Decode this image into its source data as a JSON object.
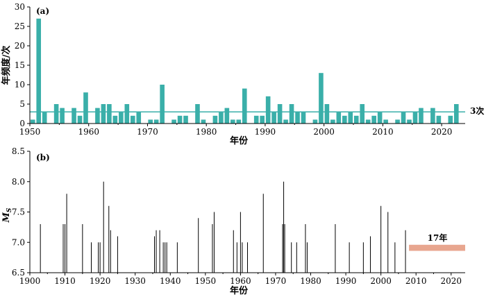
{
  "chart_data": [
    {
      "panel_label": "(a)",
      "type": "bar",
      "xlabel": "年份",
      "ylabel": "年频度/次",
      "xlim": [
        1950,
        2024
      ],
      "ylim": [
        0,
        30
      ],
      "x_ticks": [
        1950,
        1960,
        1970,
        1980,
        1990,
        2000,
        2010,
        2020
      ],
      "y_ticks": [
        0,
        5,
        10,
        15,
        20,
        25,
        30
      ],
      "bar_color": "#3aafa9",
      "x": [
        1950,
        1951,
        1952,
        1953,
        1954,
        1955,
        1956,
        1957,
        1958,
        1959,
        1960,
        1961,
        1962,
        1963,
        1964,
        1965,
        1966,
        1967,
        1968,
        1969,
        1970,
        1971,
        1972,
        1973,
        1974,
        1975,
        1976,
        1977,
        1978,
        1979,
        1980,
        1981,
        1982,
        1983,
        1984,
        1985,
        1986,
        1987,
        1988,
        1989,
        1990,
        1991,
        1992,
        1993,
        1994,
        1995,
        1996,
        1997,
        1998,
        1999,
        2000,
        2001,
        2002,
        2003,
        2004,
        2005,
        2006,
        2007,
        2008,
        2009,
        2010,
        2011,
        2012,
        2013,
        2014,
        2015,
        2016,
        2017,
        2018,
        2019,
        2020,
        2021,
        2022
      ],
      "values": [
        1,
        27,
        3,
        0,
        5,
        4,
        0,
        4,
        2,
        8,
        0,
        4,
        5,
        5,
        2,
        3,
        5,
        2,
        3,
        0,
        1,
        1,
        10,
        0,
        1,
        2,
        2,
        0,
        5,
        1,
        0,
        2,
        3,
        4,
        1,
        1,
        9,
        0,
        2,
        2,
        7,
        3,
        5,
        1,
        5,
        3,
        3,
        0,
        1,
        13,
        5,
        1,
        3,
        2,
        3,
        2,
        5,
        1,
        2,
        3,
        1,
        0,
        1,
        3,
        1,
        3,
        4,
        0,
        4,
        2,
        0,
        2,
        5
      ],
      "mean_line": {
        "value": 3,
        "label": "3次"
      }
    },
    {
      "panel_label": "(b)",
      "type": "bar",
      "style": "stem",
      "xlabel": "年份",
      "ylabel": "M",
      "ylabel_subscript": "S",
      "xlim": [
        1900,
        2024
      ],
      "ylim": [
        6.5,
        8.5
      ],
      "x_ticks": [
        1900,
        1910,
        1920,
        1930,
        1940,
        1950,
        1960,
        1970,
        1980,
        1990,
        2000,
        2010,
        2020
      ],
      "y_ticks": [
        "6.5",
        "7.0",
        "7.5",
        "8.0",
        "8.5"
      ],
      "x": [
        1903,
        1909.5,
        1910,
        1910.5,
        1915,
        1917.5,
        1919.5,
        1920,
        1921,
        1922.5,
        1923,
        1925,
        1935.5,
        1936,
        1937,
        1938,
        1938.5,
        1939,
        1942,
        1948,
        1952,
        1952.5,
        1958,
        1959,
        1960,
        1960.5,
        1962,
        1966.5,
        1972,
        1972.3,
        1972.6,
        1974.5,
        1976,
        1978.5,
        1979,
        1987,
        1991,
        1995,
        1997,
        2000,
        2002,
        2004,
        2007
      ],
      "values": [
        7.3,
        7.3,
        7.3,
        7.8,
        7.3,
        7.0,
        7.0,
        7.0,
        8.0,
        7.6,
        7.2,
        7.1,
        7.1,
        7.2,
        7.2,
        7.0,
        7.0,
        7.0,
        7.0,
        7.4,
        7.3,
        7.5,
        7.2,
        7.0,
        7.5,
        7.0,
        7.0,
        7.8,
        7.3,
        8.0,
        7.3,
        7.0,
        7.0,
        7.3,
        7.0,
        7.3,
        7.0,
        7.0,
        7.1,
        7.6,
        7.5,
        7.0,
        7.2
      ],
      "gap_band": {
        "x_start": 2008,
        "x_end": 2024,
        "y_low": 6.86,
        "y_high": 6.96,
        "label": "17年",
        "color": "#e8a68f"
      }
    }
  ]
}
